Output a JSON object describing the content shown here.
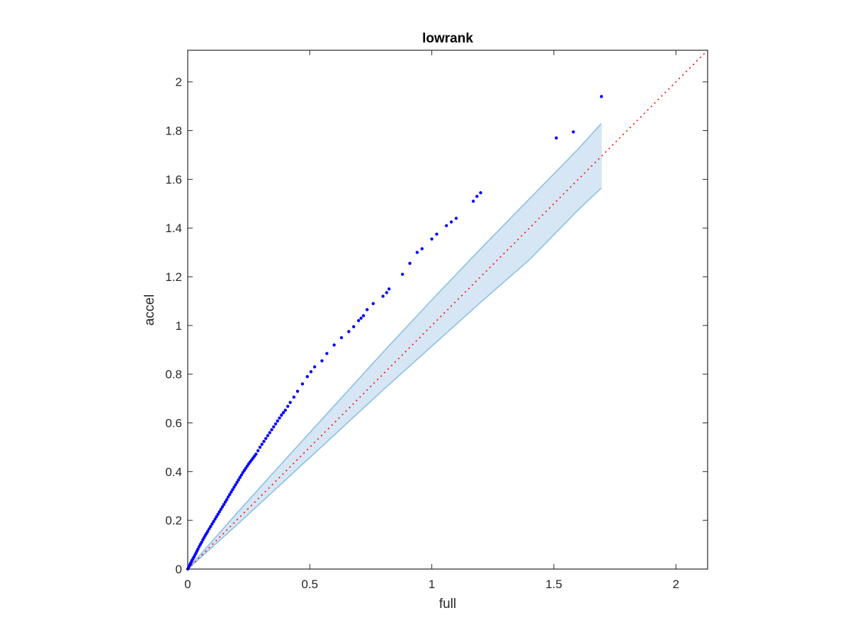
{
  "chart_data": {
    "type": "scatter",
    "title": "lowrank",
    "xlabel": "full",
    "ylabel": "accel",
    "xlim": [
      0,
      2.13
    ],
    "ylim": [
      0,
      2.13
    ],
    "xticks": [
      0,
      0.5,
      1,
      1.5,
      2
    ],
    "xtick_labels": [
      "0",
      "0.5",
      "1",
      "1.5",
      "2"
    ],
    "yticks": [
      0,
      0.2,
      0.4,
      0.6,
      0.8,
      1,
      1.2,
      1.4,
      1.6,
      1.8,
      2
    ],
    "ytick_labels": [
      "0",
      "0.2",
      "0.4",
      "0.6",
      "0.8",
      "1",
      "1.2",
      "1.4",
      "1.6",
      "1.8",
      "2"
    ],
    "grid": false,
    "box": true,
    "reference_line": {
      "style": "dotted",
      "color": "#ff0000",
      "x": [
        0,
        2.13
      ],
      "y": [
        0,
        2.13
      ]
    },
    "band": {
      "color_fill": "#d6e6f4",
      "color_edge": "#8cc0e0",
      "x": [
        0,
        0.2,
        0.4,
        0.6,
        0.8,
        1.0,
        1.2,
        1.4,
        1.6,
        1.695
      ],
      "upper": [
        0,
        0.228,
        0.45,
        0.67,
        0.89,
        1.105,
        1.315,
        1.52,
        1.725,
        1.83
      ],
      "lower": [
        0,
        0.18,
        0.365,
        0.55,
        0.735,
        0.915,
        1.095,
        1.27,
        1.475,
        1.565
      ]
    },
    "series": [
      {
        "marker_color": "#0000ff",
        "x": [
          0,
          0.003,
          0.006,
          0.009,
          0.012,
          0.015,
          0.018,
          0.022,
          0.026,
          0.03,
          0.034,
          0.038,
          0.042,
          0.047,
          0.052,
          0.057,
          0.062,
          0.067,
          0.072,
          0.077,
          0.082,
          0.088,
          0.094,
          0.1,
          0.106,
          0.112,
          0.118,
          0.124,
          0.13,
          0.136,
          0.142,
          0.148,
          0.154,
          0.16,
          0.166,
          0.172,
          0.178,
          0.184,
          0.19,
          0.196,
          0.202,
          0.208,
          0.214,
          0.22,
          0.226,
          0.232,
          0.238,
          0.244,
          0.25,
          0.256,
          0.262,
          0.268,
          0.274,
          0.28,
          0.288,
          0.296,
          0.304,
          0.312,
          0.32,
          0.328,
          0.336,
          0.344,
          0.352,
          0.36,
          0.368,
          0.376,
          0.384,
          0.392,
          0.4,
          0.41,
          0.42,
          0.435,
          0.45,
          0.47,
          0.49,
          0.505,
          0.52,
          0.55,
          0.57,
          0.6,
          0.63,
          0.66,
          0.68,
          0.7,
          0.71,
          0.72,
          0.735,
          0.76,
          0.8,
          0.815,
          0.825,
          0.88,
          0.91,
          0.94,
          0.96,
          1.0,
          1.02,
          1.06,
          1.08,
          1.1,
          1.17,
          1.185,
          1.2,
          1.51,
          1.58,
          1.695
        ],
        "y": [
          0,
          0.005,
          0.011,
          0.018,
          0.024,
          0.03,
          0.036,
          0.043,
          0.05,
          0.058,
          0.066,
          0.074,
          0.082,
          0.092,
          0.101,
          0.11,
          0.12,
          0.129,
          0.138,
          0.146,
          0.155,
          0.165,
          0.175,
          0.185,
          0.195,
          0.205,
          0.215,
          0.225,
          0.235,
          0.245,
          0.255,
          0.265,
          0.275,
          0.285,
          0.296,
          0.306,
          0.316,
          0.326,
          0.336,
          0.346,
          0.356,
          0.366,
          0.376,
          0.386,
          0.396,
          0.405,
          0.414,
          0.423,
          0.432,
          0.44,
          0.448,
          0.456,
          0.464,
          0.472,
          0.486,
          0.5,
          0.512,
          0.524,
          0.536,
          0.548,
          0.56,
          0.572,
          0.584,
          0.596,
          0.608,
          0.62,
          0.632,
          0.642,
          0.652,
          0.668,
          0.684,
          0.706,
          0.73,
          0.76,
          0.79,
          0.81,
          0.83,
          0.855,
          0.885,
          0.92,
          0.95,
          0.975,
          0.995,
          1.02,
          1.03,
          1.04,
          1.065,
          1.09,
          1.12,
          1.135,
          1.15,
          1.21,
          1.255,
          1.3,
          1.315,
          1.355,
          1.375,
          1.41,
          1.425,
          1.44,
          1.51,
          1.53,
          1.545,
          1.77,
          1.795,
          1.94
        ]
      }
    ]
  }
}
